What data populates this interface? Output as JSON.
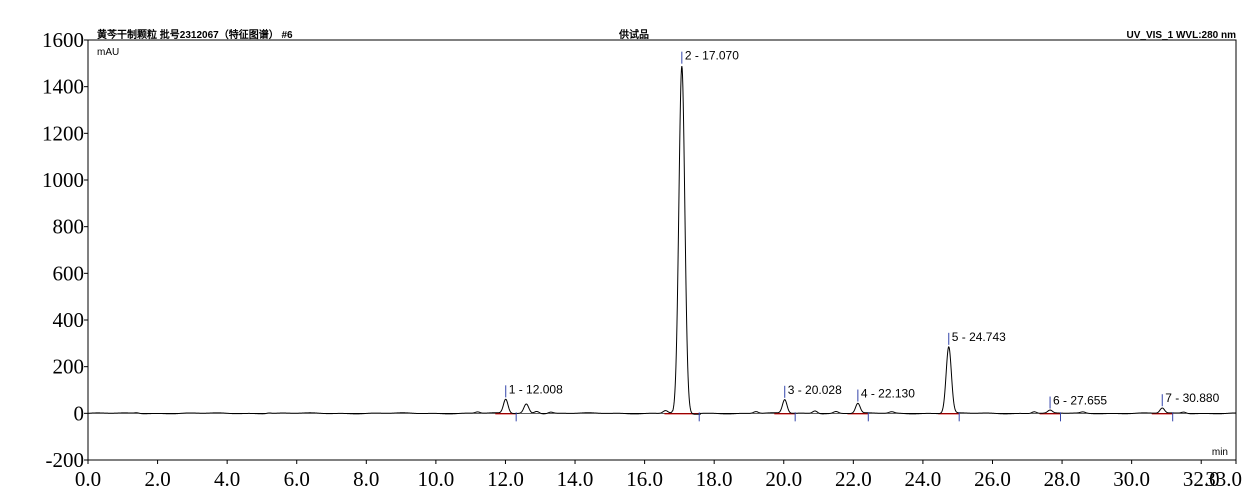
{
  "header": {
    "left_title": "黄芩干制颗粒 批号2312067（特征图谱） #6",
    "center_title": "供试品",
    "right_title": "UV_VIS_1 WVL:280 nm"
  },
  "chart_data": {
    "type": "line",
    "ylabel": "mAU",
    "xlabel": "min",
    "xlim": [
      0,
      33.0
    ],
    "ylim": [
      -200,
      1600
    ],
    "x_ticks": [
      "0.0",
      "2.0",
      "4.0",
      "6.0",
      "8.0",
      "10.0",
      "12.0",
      "14.0",
      "16.0",
      "18.0",
      "20.0",
      "22.0",
      "24.0",
      "26.0",
      "28.0",
      "30.0",
      "32.0",
      "33.0"
    ],
    "x_tick_values": [
      0,
      2,
      4,
      6,
      8,
      10,
      12,
      14,
      16,
      18,
      20,
      22,
      24,
      26,
      28,
      30,
      32,
      33
    ],
    "y_ticks": [
      "-200",
      "0",
      "200",
      "400",
      "600",
      "800",
      "1000",
      "1200",
      "1400",
      "1600"
    ],
    "y_tick_values": [
      -200,
      0,
      200,
      400,
      600,
      800,
      1000,
      1200,
      1400,
      1600
    ],
    "grid": false,
    "peaks": [
      {
        "label": "1 - 12.008",
        "rt": 12.008,
        "height": 60
      },
      {
        "label": "2 - 17.070",
        "rt": 17.07,
        "height": 1490
      },
      {
        "label": "3 - 20.028",
        "rt": 20.028,
        "height": 58
      },
      {
        "label": "4 - 22.130",
        "rt": 22.13,
        "height": 42
      },
      {
        "label": "5 - 24.743",
        "rt": 24.743,
        "height": 285
      },
      {
        "label": "6 - 27.655",
        "rt": 27.655,
        "height": 12
      },
      {
        "label": "7 - 30.880",
        "rt": 30.88,
        "height": 22
      }
    ],
    "minor_peaks": [
      {
        "rt": 1.4,
        "height": 3
      },
      {
        "rt": 5.2,
        "height": 3
      },
      {
        "rt": 11.2,
        "height": 6
      },
      {
        "rt": 12.6,
        "height": 40
      },
      {
        "rt": 12.9,
        "height": 10
      },
      {
        "rt": 13.3,
        "height": 6
      },
      {
        "rt": 16.6,
        "height": 12
      },
      {
        "rt": 19.2,
        "height": 8
      },
      {
        "rt": 20.9,
        "height": 12
      },
      {
        "rt": 21.5,
        "height": 8
      },
      {
        "rt": 23.1,
        "height": 6
      },
      {
        "rt": 27.2,
        "height": 8
      },
      {
        "rt": 28.6,
        "height": 5
      },
      {
        "rt": 31.5,
        "height": 6
      }
    ],
    "colors": {
      "trace": "#000000",
      "integration": "#cc0000",
      "marker": "#3344aa"
    }
  }
}
